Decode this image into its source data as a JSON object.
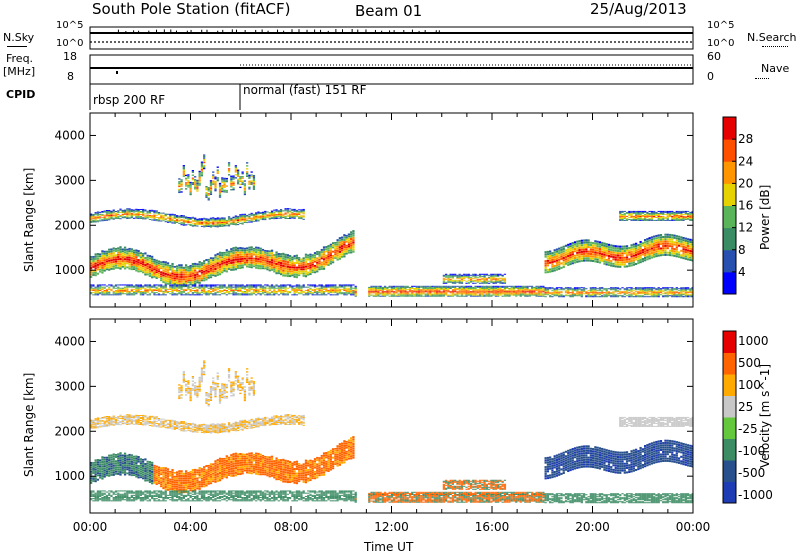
{
  "header": {
    "station": "South Pole Station (fitACF)",
    "beam": "Beam 01",
    "date": "25/Aug/2013"
  },
  "status_panel": {
    "nsky_label": "N.Sky",
    "nsearch_label": "N.Search",
    "nsky_ticks": [
      "10^5",
      "10^0"
    ],
    "nsearch_ticks": [
      "10^5",
      "10^0"
    ],
    "freq_label_1": "Freq.",
    "freq_label_2": "[MHz]",
    "freq_ticks": [
      "18",
      "8"
    ],
    "nave_label": "Nave",
    "nave_ticks": [
      "60",
      "0"
    ],
    "cpid_label": "CPID",
    "cpid_modes": [
      {
        "label": "rbsp 200 RF",
        "start_hour": 0
      },
      {
        "label": "normal (fast) 151 RF",
        "start_hour": 6
      }
    ]
  },
  "chart_data": [
    {
      "type": "heatmap",
      "name": "power",
      "ylabel": "Slant Range [km]",
      "xlabel": "",
      "yticks": [
        "1000",
        "2000",
        "3000",
        "4000"
      ],
      "ylim": [
        180,
        4500
      ],
      "xlim": [
        0,
        24
      ],
      "colorbar_label": "Power [dB]",
      "colorbar_ticks": [
        "4",
        "8",
        "12",
        "16",
        "20",
        "24",
        "28"
      ],
      "colorbar_colors": [
        "#0000ff",
        "#2850b0",
        "#3a8c64",
        "#5ab45a",
        "#e6d200",
        "#ff9600",
        "#ff5000",
        "#e60000"
      ]
    },
    {
      "type": "heatmap",
      "name": "velocity",
      "ylabel": "Slant Range [km]",
      "xlabel": "Time UT",
      "yticks": [
        "1000",
        "2000",
        "3000",
        "4000"
      ],
      "xticks": [
        "00:00",
        "04:00",
        "08:00",
        "12:00",
        "16:00",
        "20:00",
        "00:00"
      ],
      "ylim": [
        180,
        4500
      ],
      "xlim": [
        0,
        24
      ],
      "colorbar_label": "Velocity [m s^-1]",
      "colorbar_ticks": [
        "1000",
        "500",
        "100",
        "25",
        "-25",
        "-100",
        "-500",
        "-1000"
      ],
      "colorbar_colors": [
        "#1e3cb4",
        "#28508c",
        "#3c8c64",
        "#64c83c",
        "#c8c8c8",
        "#ffaa00",
        "#ff6400",
        "#e60000"
      ]
    }
  ]
}
